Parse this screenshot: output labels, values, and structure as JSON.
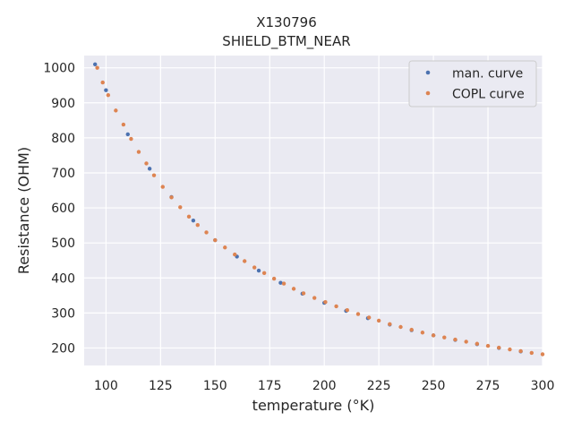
{
  "chart_data": {
    "type": "scatter",
    "title_lines": [
      "X130796",
      "SHIELD_BTM_NEAR"
    ],
    "xlabel": "temperature (°K)",
    "ylabel": "Resistance (OHM)",
    "xlim": [
      90,
      300
    ],
    "ylim": [
      150,
      1035
    ],
    "x_ticks": [
      100,
      125,
      150,
      175,
      200,
      225,
      250,
      275,
      300
    ],
    "y_ticks": [
      200,
      300,
      400,
      500,
      600,
      700,
      800,
      900,
      1000
    ],
    "grid": true,
    "legend_position": "top-right",
    "series": [
      {
        "name": "man. curve",
        "color": "#4c72b0",
        "x": [
          95,
          100,
          110,
          120,
          130,
          140,
          150,
          160,
          170,
          180,
          190,
          200,
          210,
          220,
          230,
          240,
          250,
          260,
          270,
          280,
          290
        ],
        "y": [
          1010,
          936,
          810,
          712,
          631,
          564,
          508,
          461,
          421,
          386,
          355,
          329,
          306,
          285,
          267,
          251,
          236,
          223,
          211,
          200,
          190
        ]
      },
      {
        "name": "COPL curve",
        "color": "#dd8452",
        "x": [
          96,
          98.5,
          101,
          104.5,
          108,
          111.5,
          115,
          118.5,
          122,
          126,
          130,
          134,
          138,
          142,
          146,
          150,
          154.5,
          159,
          163.5,
          168,
          172.5,
          177,
          181.5,
          186,
          190.5,
          195.5,
          200.5,
          205.5,
          210.5,
          215.5,
          220.5,
          225,
          230,
          235,
          240,
          245,
          250,
          255,
          260,
          265,
          270,
          275,
          280,
          285,
          290,
          295,
          300
        ],
        "y": [
          1000,
          958,
          922,
          878,
          838,
          797,
          760,
          727,
          693,
          660,
          630,
          602,
          575,
          551,
          530,
          508,
          487,
          467,
          448,
          430,
          414,
          398,
          384,
          369,
          356,
          343,
          331,
          319,
          308,
          297,
          287,
          278,
          268,
          260,
          252,
          244,
          236,
          230,
          224,
          218,
          212,
          206,
          201,
          196,
          191,
          186,
          182
        ]
      }
    ]
  }
}
